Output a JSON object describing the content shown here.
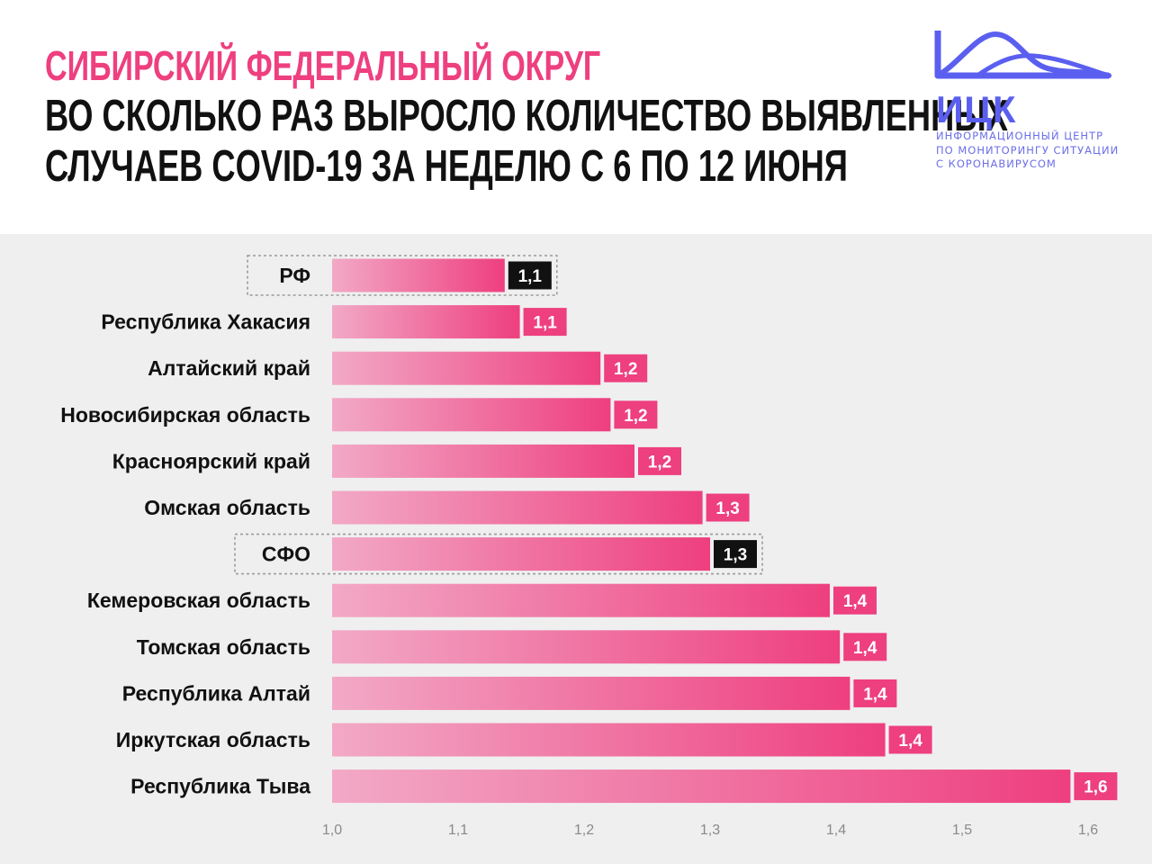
{
  "header": {
    "title_line1": "Сибирский федеральный округ",
    "title_line2": "Во сколько раз выросло количество выявленных",
    "title_line3": "случаев COVID-19 за неделю с 6 по 12 июня"
  },
  "logo": {
    "icon": "mountain-wave-logo-icon",
    "word": "ИЦК",
    "subtitle_line1": "Информационный центр",
    "subtitle_line2": "по мониторингу ситуации",
    "subtitle_line3": "с коронавирусом"
  },
  "colors": {
    "title_accent": "#ee3f7f",
    "bar_start": "#f2a9c6",
    "bar_end": "#ee3f7f",
    "label_pink": "#ee3f7f",
    "label_dark": "#111111",
    "logo": "#5b5ff0"
  },
  "chart_data": {
    "type": "bar",
    "orientation": "horizontal",
    "xlim": [
      1.0,
      1.6
    ],
    "ticks": [
      "1,0",
      "1,1",
      "1,2",
      "1,3",
      "1,4",
      "1,5",
      "1,6"
    ],
    "highlighted": [
      "РФ",
      "СФО"
    ],
    "categories": [
      "РФ",
      "Республика Хакасия",
      "Алтайский край",
      "Новосибирская область",
      "Красноярский край",
      "Омская область",
      "СФО",
      "Кемеровская область",
      "Томская область",
      "Республика Алтай",
      "Иркутская область",
      "Республика Тыва"
    ],
    "values": [
      1.137,
      1.149,
      1.213,
      1.221,
      1.24,
      1.294,
      1.3,
      1.395,
      1.403,
      1.411,
      1.439,
      1.586
    ],
    "value_labels": [
      "1,1",
      "1,1",
      "1,2",
      "1,2",
      "1,2",
      "1,3",
      "1,3",
      "1,4",
      "1,4",
      "1,4",
      "1,4",
      "1,6"
    ]
  }
}
